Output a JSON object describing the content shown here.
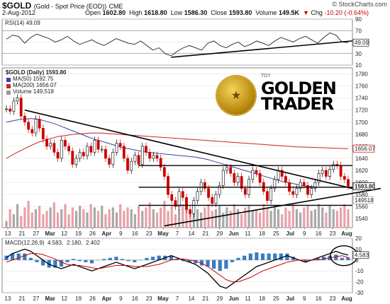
{
  "header": {
    "symbol": "$GOLD",
    "desc": "(Gold - Spot Price (EOD))",
    "exchange": "CME",
    "date": "2-Aug-2012",
    "watermark": "© StockCharts.com",
    "open_label": "Open",
    "open": "1602.80",
    "high_label": "High",
    "high": "1618.80",
    "low_label": "Low",
    "low": "1586.30",
    "close_label": "Close",
    "close": "1593.80",
    "volume_label": "Volume",
    "volume": "149.5K",
    "chg_label": "Chg",
    "chg": "-10.20 (-0.64%)",
    "chg_arrow": "▼"
  },
  "logo": {
    "small": "TDY",
    "line1": "GOLDEN",
    "line2": "TRADER"
  },
  "colors": {
    "up": "#000000",
    "down": "#cc0000",
    "ma50": "#4040a0",
    "ma200": "#cc2222",
    "vol_up": "#a8a8a8",
    "vol_down": "#e8a0a8",
    "macd": "#000000",
    "signal": "#cc0000",
    "hist": "#3a7cc0"
  },
  "chart_data": [
    {
      "type": "line",
      "title": "RSI(14) 49.09",
      "legend": "RSI(14) 49.09",
      "ylim": [
        10,
        90
      ],
      "yticks": [
        10,
        30,
        50,
        70,
        90
      ],
      "last_value": "49.09",
      "series": [
        {
          "name": "RSI(14)",
          "values": [
            55,
            62,
            60,
            48,
            58,
            64,
            60,
            56,
            50,
            54,
            60,
            52,
            46,
            50,
            54,
            48,
            44,
            50,
            56,
            52,
            48,
            46,
            52,
            44,
            36,
            40,
            30,
            26,
            34,
            40,
            44,
            40,
            36,
            48,
            52,
            44,
            40,
            46,
            50,
            42,
            46,
            52,
            48,
            44,
            52,
            58,
            54,
            50,
            56,
            60,
            54,
            48,
            58,
            66,
            62,
            50,
            49.09
          ]
        }
      ]
    },
    {
      "type": "candlestick",
      "title": "$GOLD (Daily) 1593.80",
      "ylim": [
        1525,
        1790
      ],
      "yticks": [
        1540,
        1560,
        1580,
        1600,
        1620,
        1640,
        1660,
        1680,
        1700,
        1720,
        1740,
        1760,
        1780
      ],
      "x_labels": [
        "13",
        "21",
        "27",
        "Mar",
        "12",
        "19",
        "26",
        "Apr",
        "9",
        "16",
        "23",
        "May",
        "7",
        "14",
        "21",
        "29",
        "Jun",
        "11",
        "18",
        "25",
        "Jul",
        "9",
        "16",
        "23",
        "Aug"
      ],
      "legend": [
        {
          "label": "$GOLD (Daily) 1593.80"
        },
        {
          "label": "MA(50) 1592.75"
        },
        {
          "label": "MA(200) 1656.07"
        },
        {
          "label": "Volume 149,518"
        }
      ],
      "price_tags": {
        "ma200": "1656.07",
        "close": "1593.80",
        "volume": "149518"
      },
      "closes": [
        1722,
        1718,
        1735,
        1740,
        1710,
        1700,
        1688,
        1682,
        1705,
        1690,
        1672,
        1660,
        1665,
        1650,
        1640,
        1670,
        1660,
        1652,
        1630,
        1640,
        1650,
        1644,
        1660,
        1650,
        1670,
        1655,
        1655,
        1640,
        1630,
        1650,
        1665,
        1660,
        1640,
        1620,
        1635,
        1645,
        1630,
        1660,
        1650,
        1640,
        1645,
        1640,
        1625,
        1610,
        1580,
        1570,
        1560,
        1585,
        1575,
        1555,
        1548,
        1570,
        1585,
        1600,
        1590,
        1575,
        1565,
        1580,
        1595,
        1620,
        1625,
        1615,
        1600,
        1610,
        1590,
        1580,
        1605,
        1620,
        1615,
        1600,
        1585,
        1570,
        1590,
        1605,
        1620,
        1610,
        1600,
        1585,
        1580,
        1590,
        1600,
        1595,
        1580,
        1590,
        1600,
        1615,
        1620,
        1610,
        1622,
        1630,
        1628,
        1610,
        1605,
        1593.8
      ],
      "ma50": [
        1700,
        1702,
        1704,
        1705,
        1706,
        1705,
        1703,
        1700,
        1697,
        1693,
        1689,
        1685,
        1681,
        1677,
        1673,
        1670,
        1667,
        1664,
        1661,
        1658,
        1656,
        1654,
        1652,
        1650,
        1649,
        1648,
        1647,
        1646,
        1645,
        1644,
        1643,
        1642,
        1640,
        1638,
        1635,
        1632,
        1629,
        1626,
        1623,
        1620,
        1617,
        1614,
        1611,
        1608,
        1605,
        1602,
        1600,
        1598,
        1596,
        1594,
        1593,
        1592,
        1592,
        1592,
        1592,
        1592,
        1592.75
      ],
      "ma200": [
        1640,
        1648,
        1655,
        1662,
        1668,
        1672,
        1676,
        1678,
        1680,
        1681,
        1682,
        1682,
        1681,
        1680,
        1679,
        1678,
        1677,
        1676,
        1675,
        1674,
        1673,
        1672,
        1671,
        1670,
        1669,
        1668,
        1667,
        1666,
        1665,
        1664,
        1663,
        1662,
        1661,
        1660,
        1659,
        1658.5,
        1658,
        1657.5,
        1657,
        1656.5,
        1656.07
      ],
      "volume": [
        20,
        55,
        40,
        70,
        35,
        60,
        80,
        45,
        55,
        65,
        40,
        50,
        60,
        75,
        45,
        55,
        70,
        40,
        60,
        50,
        65,
        55,
        45,
        70,
        60,
        50,
        65,
        40,
        55,
        60,
        45,
        70,
        50,
        60,
        55,
        40,
        65,
        50,
        60,
        75,
        55,
        45,
        60,
        80,
        50,
        65,
        40,
        55,
        70,
        60,
        50,
        65,
        55,
        45,
        60,
        70,
        50,
        55,
        65,
        45,
        60,
        50,
        70,
        55,
        40,
        60,
        65,
        50,
        55,
        45,
        70,
        60,
        50,
        65,
        55,
        40,
        60,
        50,
        70,
        55,
        45,
        60,
        65,
        50,
        55,
        70,
        60,
        45,
        65,
        55,
        50,
        60,
        70,
        55
      ]
    },
    {
      "type": "line",
      "title": "MACD(12,26,9) 4.583, 2.180, 2.402",
      "legend": {
        "name": "MACD(12,26,9)",
        "macd": "4.583",
        "signal": "2.180",
        "hist": "2.402"
      },
      "ylim": [
        -30,
        20
      ],
      "yticks": [
        -30,
        -20,
        -10,
        0,
        10,
        20
      ],
      "last_value": "4.583",
      "series": [
        {
          "name": "MACD",
          "values": [
            2,
            6,
            8,
            10,
            8,
            4,
            0,
            -4,
            -6,
            -8,
            -6,
            -4,
            -6,
            -8,
            -10,
            -8,
            -6,
            -4,
            -2,
            -4,
            -6,
            -8,
            -6,
            -4,
            -2,
            0,
            2,
            4,
            2,
            0,
            -2,
            -4,
            -8,
            -12,
            -18,
            -24,
            -26,
            -22,
            -18,
            -14,
            -10,
            -6,
            -4,
            -2,
            0,
            2,
            4,
            2,
            0,
            -2,
            0,
            2,
            4,
            6,
            8,
            6,
            4.583
          ]
        },
        {
          "name": "Signal",
          "values": [
            -2,
            0,
            2,
            4,
            6,
            6,
            5,
            3,
            1,
            -2,
            -4,
            -5,
            -5,
            -6,
            -7,
            -8,
            -7,
            -6,
            -5,
            -5,
            -5,
            -6,
            -6,
            -6,
            -5,
            -4,
            -2,
            0,
            1,
            1,
            0,
            -1,
            -3,
            -6,
            -10,
            -14,
            -18,
            -20,
            -20,
            -18,
            -16,
            -13,
            -10,
            -8,
            -6,
            -4,
            -2,
            -1,
            0,
            0,
            0,
            0,
            1,
            2,
            3,
            4,
            2.18
          ]
        }
      ],
      "hist": [
        4,
        6,
        6,
        6,
        2,
        -2,
        -5,
        -7,
        -7,
        -6,
        -2,
        1,
        -1,
        -2,
        -3,
        0,
        1,
        2,
        3,
        1,
        -1,
        -2,
        0,
        2,
        3,
        4,
        4,
        4,
        1,
        -1,
        -2,
        -3,
        -5,
        -6,
        -8,
        -10,
        -8,
        -2,
        2,
        4,
        6,
        7,
        6,
        6,
        6,
        6,
        6,
        3,
        0,
        -2,
        0,
        2,
        3,
        4,
        5,
        2,
        2.402
      ]
    }
  ]
}
